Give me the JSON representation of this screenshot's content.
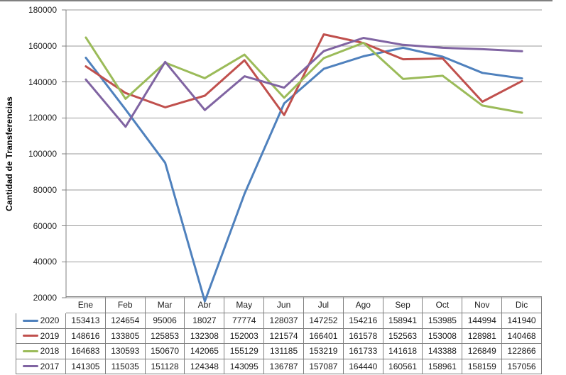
{
  "chart_data": {
    "type": "line",
    "title": "",
    "xlabel": "",
    "ylabel": "Cantidad de Transferencias",
    "ylim": [
      20000,
      180000
    ],
    "y_tick_step": 20000,
    "grid": true,
    "legend_position": "data-table-left-column",
    "categories": [
      "Ene",
      "Feb",
      "Mar",
      "Abr",
      "May",
      "Jun",
      "Jul",
      "Ago",
      "Sep",
      "Oct",
      "Nov",
      "Dic"
    ],
    "series": [
      {
        "name": "2020",
        "color": "#4F81BD",
        "values": [
          153413,
          124654,
          95006,
          18027,
          77774,
          128037,
          147252,
          154216,
          158941,
          153985,
          144994,
          141940
        ]
      },
      {
        "name": "2019",
        "color": "#C0504D",
        "values": [
          148616,
          133805,
          125853,
          132308,
          152003,
          121574,
          166401,
          161578,
          152563,
          153008,
          128981,
          140468
        ]
      },
      {
        "name": "2018",
        "color": "#9BBB59",
        "values": [
          164683,
          130593,
          150670,
          142065,
          155129,
          131185,
          153219,
          161733,
          141618,
          143388,
          126849,
          122866
        ]
      },
      {
        "name": "2017",
        "color": "#8064A2",
        "values": [
          141305,
          115035,
          151128,
          124348,
          143095,
          136787,
          157087,
          164440,
          160561,
          158961,
          158159,
          157056
        ]
      }
    ],
    "style": {
      "gridline_color": "#9a9a9a",
      "axis_color": "#808080",
      "table_border_color": "#7f7f7f",
      "line_width": 3
    }
  }
}
